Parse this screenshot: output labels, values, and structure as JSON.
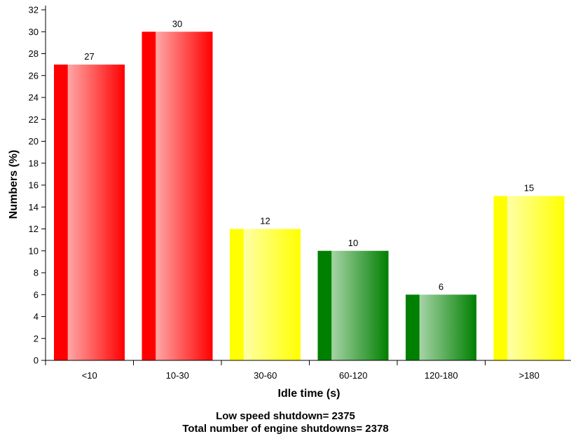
{
  "chart_data": {
    "type": "bar",
    "categories": [
      "<10",
      "10-30",
      "30-60",
      "60-120",
      "120-180",
      ">180"
    ],
    "values": [
      27,
      30,
      12,
      10,
      6,
      15
    ],
    "colors": [
      "#ff0000",
      "#ff0000",
      "#ffff00",
      "#008000",
      "#008000",
      "#ffff00"
    ],
    "xlabel": "Idle time (s)",
    "ylabel": "Numbers (%)",
    "ylim": [
      0,
      32
    ],
    "yticks": [
      0,
      2,
      4,
      6,
      8,
      10,
      12,
      14,
      16,
      18,
      20,
      22,
      24,
      26,
      28,
      30,
      32
    ],
    "grid": false,
    "legend": "none"
  },
  "notes": {
    "line1": "Low speed shutdown= 2375",
    "line2": "Total number of engine shutdowns= 2378"
  }
}
